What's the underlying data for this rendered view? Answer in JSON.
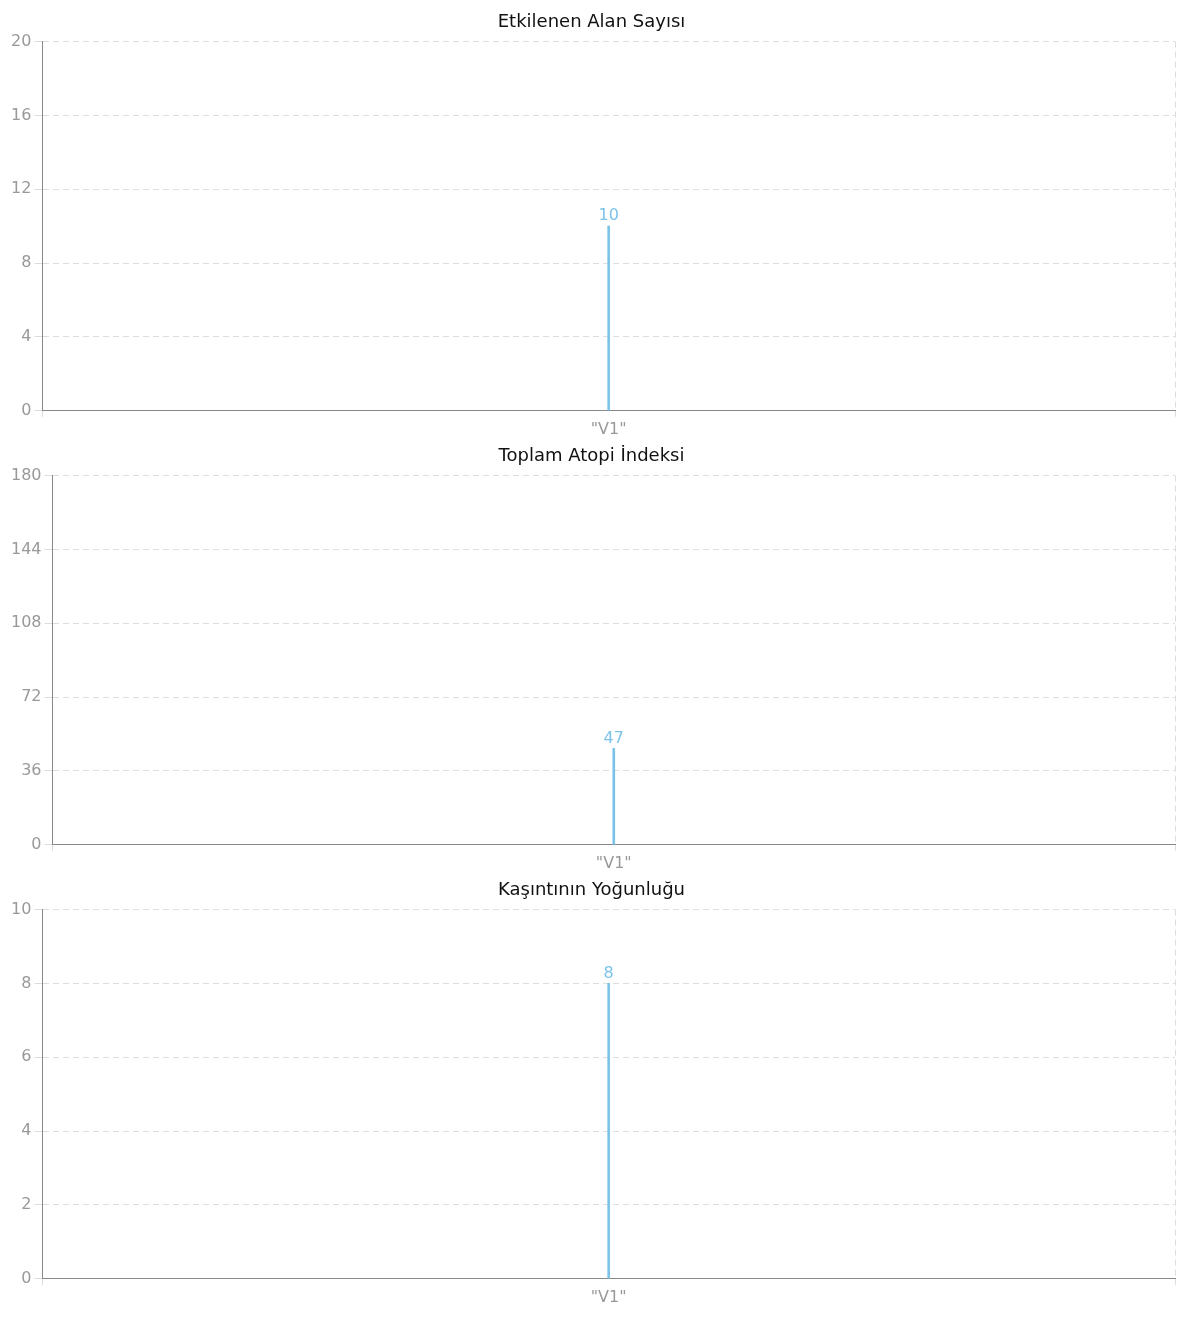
{
  "chart_data": [
    {
      "type": "bar",
      "title": "Etkilenen Alan Sayısı",
      "categories": [
        "\"V1\""
      ],
      "values": [
        10
      ],
      "color": "#7cc3ea",
      "ylim": [
        0,
        20
      ],
      "yticks": [
        0,
        4,
        8,
        12,
        16,
        20
      ],
      "grid": true,
      "data_labels": true
    },
    {
      "type": "bar",
      "title": "Toplam Atopi İndeksi",
      "categories": [
        "\"V1\""
      ],
      "values": [
        47
      ],
      "color": "#7cc3ea",
      "ylim": [
        0,
        180
      ],
      "yticks": [
        0,
        36,
        72,
        108,
        144,
        180
      ],
      "grid": true,
      "data_labels": true
    },
    {
      "type": "bar",
      "title": "Kaşıntının Yoğunluğu",
      "categories": [
        "\"V1\""
      ],
      "values": [
        8
      ],
      "color": "#7cc3ea",
      "ylim": [
        0,
        10
      ],
      "yticks": [
        0,
        2,
        4,
        6,
        8,
        10
      ],
      "grid": true,
      "data_labels": true
    }
  ]
}
